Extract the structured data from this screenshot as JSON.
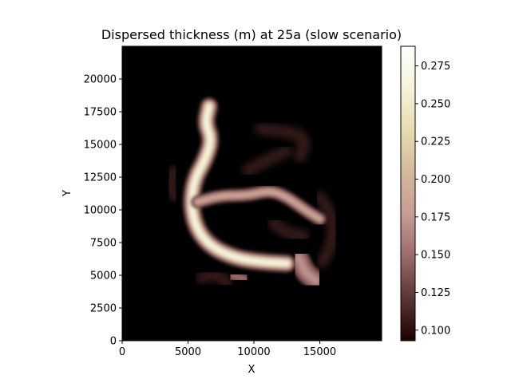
{
  "chart_data": {
    "type": "heatmap",
    "title": "Dispersed thickness (m) at 25a (slow scenario)",
    "xlabel": "X",
    "ylabel": "Y",
    "xlim": [
      0,
      19700
    ],
    "ylim": [
      0,
      22500
    ],
    "x_ticks": [
      0,
      5000,
      10000,
      15000
    ],
    "x_tick_labels": [
      "0",
      "5000",
      "10000",
      "15000"
    ],
    "y_ticks": [
      0,
      2500,
      5000,
      7500,
      10000,
      12500,
      15000,
      17500,
      20000
    ],
    "y_tick_labels": [
      "0",
      "2500",
      "5000",
      "7500",
      "10000",
      "12500",
      "15000",
      "17500",
      "20000"
    ],
    "colorbar": {
      "colormap": "pink",
      "range": [
        0.093,
        0.288
      ],
      "ticks": [
        0.1,
        0.125,
        0.15,
        0.175,
        0.2,
        0.225,
        0.25,
        0.275
      ],
      "tick_labels": [
        "0.100",
        "0.125",
        "0.150",
        "0.175",
        "0.200",
        "0.225",
        "0.250",
        "0.275"
      ],
      "stops": [
        "#1e0000",
        "#5a3434",
        "#9a6a6a",
        "#c69c95",
        "#d4b89c",
        "#e6dcaf",
        "#f6f3dc",
        "#ffffff"
      ]
    },
    "background_color": "#000000",
    "deposits": [
      {
        "name": "main channel",
        "path": [
          [
            6600,
            17900
          ],
          [
            6300,
            16600
          ],
          [
            6800,
            15400
          ],
          [
            6300,
            13800
          ],
          [
            5500,
            12400
          ],
          [
            5200,
            10500
          ],
          [
            5600,
            8600
          ],
          [
            6700,
            7200
          ],
          [
            8600,
            6300
          ],
          [
            10700,
            6000
          ],
          [
            12500,
            5900
          ]
        ],
        "thickness": 0.26
      },
      {
        "name": "east-west branch",
        "path": [
          [
            5700,
            10600
          ],
          [
            7500,
            11100
          ],
          [
            9500,
            11100
          ],
          [
            11200,
            11500
          ],
          [
            12500,
            11000
          ],
          [
            14000,
            9900
          ],
          [
            15000,
            9300
          ]
        ],
        "thickness": 0.19
      },
      {
        "name": "south-east lobe",
        "path": [
          [
            13400,
            6300
          ],
          [
            13900,
            5200
          ],
          [
            14700,
            4600
          ]
        ],
        "thickness": 0.17
      },
      {
        "name": "south lobe",
        "path": [
          [
            8400,
            5000
          ],
          [
            9300,
            4700
          ]
        ],
        "thickness": 0.15
      }
    ],
    "low_zones": [
      {
        "path": [
          [
            4000,
            13000
          ],
          [
            3500,
            12000
          ],
          [
            4000,
            11000
          ]
        ],
        "thickness": 0.11
      },
      {
        "path": [
          [
            10500,
            16200
          ],
          [
            12500,
            16000
          ],
          [
            14000,
            15500
          ],
          [
            13500,
            14000
          ]
        ],
        "thickness": 0.11
      },
      {
        "path": [
          [
            9500,
            13000
          ],
          [
            11000,
            13800
          ],
          [
            12500,
            14500
          ]
        ],
        "thickness": 0.11
      },
      {
        "path": [
          [
            15000,
            11000
          ],
          [
            16000,
            9500
          ],
          [
            16000,
            7500
          ],
          [
            15200,
            6000
          ]
        ],
        "thickness": 0.11
      },
      {
        "path": [
          [
            6000,
            4800
          ],
          [
            7000,
            5200
          ],
          [
            8000,
            4400
          ]
        ],
        "thickness": 0.11
      },
      {
        "path": [
          [
            11500,
            9000
          ],
          [
            12500,
            8200
          ],
          [
            13800,
            8000
          ]
        ],
        "thickness": 0.11
      }
    ]
  }
}
